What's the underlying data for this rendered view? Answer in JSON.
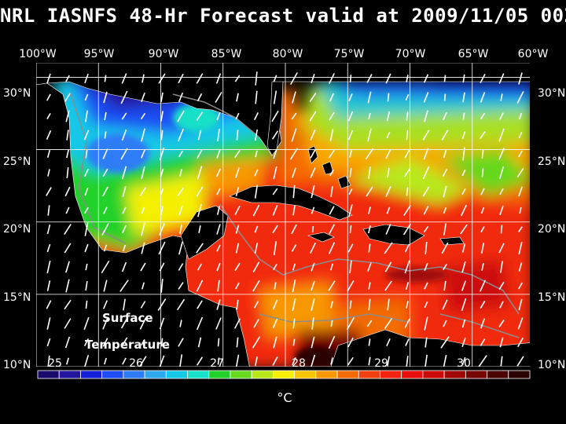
{
  "title": "NRL IASNFS  48-Hr Forecast valid at 2009/11/05 00Z",
  "lon_labels": [
    "100°W",
    "95°W",
    "90°W",
    "85°W",
    "80°W",
    "75°W",
    "70°W",
    "65°W",
    "60°W"
  ],
  "lat_labels": [
    "30°N",
    "25°N",
    "20°N",
    "15°N",
    "10°N"
  ],
  "map_text": {
    "line1": "Surface",
    "line2": "Temperature"
  },
  "colorbar": {
    "tick_labels": [
      "25",
      "26",
      "27",
      "28",
      "29",
      "30"
    ],
    "unit": "°C",
    "colors": [
      "#1a0a6e",
      "#23169e",
      "#1620d8",
      "#1f4df4",
      "#2d7cf6",
      "#2da9f0",
      "#14c8e8",
      "#19e0c8",
      "#22d22a",
      "#66d81e",
      "#b8e81c",
      "#f4f000",
      "#f8c400",
      "#f89800",
      "#f26c00",
      "#f04010",
      "#f22410",
      "#e80e0e",
      "#cc0a0a",
      "#a00808",
      "#760606",
      "#4a0404",
      "#2a0202"
    ],
    "min": 24.75,
    "max": 30.5
  },
  "map_extent": {
    "lon_min": -100,
    "lon_max": -60,
    "lat_min": 10,
    "lat_max": 31
  },
  "background_color": "#000000",
  "grid_color": "#ffffff"
}
